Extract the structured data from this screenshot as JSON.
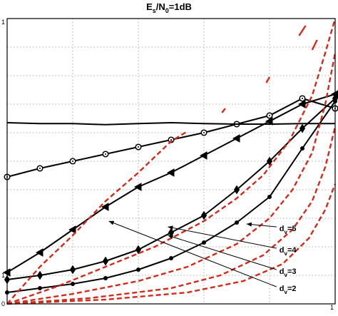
{
  "chart_data": {
    "type": "line",
    "title": "Es/N0=1dB",
    "title_parts": {
      "base": "E",
      "sub1": "s",
      "slash": "/N",
      "sub2": "0",
      "tail": "=1dB"
    },
    "xlim": [
      0,
      1
    ],
    "ylim": [
      0,
      1
    ],
    "x_tick_labels": [
      "1"
    ],
    "y_tick_labels": [
      "0",
      "1",
      "1"
    ],
    "grid": true,
    "series": [
      {
        "kind": "decoder",
        "color": "#000000",
        "marker": "circle-open",
        "x": [
          0.0,
          0.1,
          0.2,
          0.3,
          0.4,
          0.5,
          0.6,
          0.7,
          0.8,
          0.9,
          1.0
        ],
        "y": [
          0.445,
          0.475,
          0.5,
          0.525,
          0.55,
          0.575,
          0.6,
          0.63,
          0.66,
          0.72,
          0.685
        ]
      },
      {
        "kind": "decoder",
        "color": "#000000",
        "marker": "triangle-left",
        "x": [
          0.0,
          0.1,
          0.2,
          0.3,
          0.4,
          0.5,
          0.6,
          0.7,
          0.8,
          0.9,
          1.0
        ],
        "y": [
          0.11,
          0.18,
          0.26,
          0.34,
          0.41,
          0.46,
          0.52,
          0.58,
          0.64,
          0.7,
          0.735
        ]
      },
      {
        "kind": "decoder",
        "color": "#000000",
        "marker": "diamond",
        "x": [
          0.0,
          0.1,
          0.2,
          0.3,
          0.4,
          0.5,
          0.6,
          0.7,
          0.8,
          0.9,
          1.0
        ],
        "y": [
          0.085,
          0.1,
          0.12,
          0.15,
          0.19,
          0.25,
          0.31,
          0.4,
          0.5,
          0.615,
          0.72
        ]
      },
      {
        "kind": "decoder",
        "color": "#000000",
        "marker": "dot",
        "x": [
          0.0,
          0.1,
          0.2,
          0.3,
          0.4,
          0.5,
          0.6,
          0.7,
          0.8,
          0.9,
          1.0
        ],
        "y": [
          0.04,
          0.055,
          0.07,
          0.09,
          0.12,
          0.16,
          0.215,
          0.285,
          0.375,
          0.545,
          0.71
        ]
      },
      {
        "kind": "flat",
        "color": "#000000",
        "marker": "none",
        "x": [
          0.0,
          0.1,
          0.2,
          0.3,
          0.4,
          0.5,
          0.6,
          0.7,
          0.8,
          0.9,
          1.0
        ],
        "y": [
          0.635,
          0.632,
          0.632,
          0.628,
          0.632,
          0.635,
          0.632,
          0.63,
          0.63,
          0.632,
          0.632
        ]
      },
      {
        "kind": "check",
        "color": "#d42a1a",
        "marker": "none",
        "x": [
          0.0,
          0.1,
          0.2,
          0.3,
          0.4,
          0.5,
          0.55
        ],
        "y": [
          0.0,
          0.13,
          0.24,
          0.36,
          0.46,
          0.57,
          0.605
        ]
      },
      {
        "kind": "check",
        "color": "#d42a1a",
        "marker": "none",
        "x": [
          0.0,
          0.15,
          0.3,
          0.45,
          0.6,
          0.7,
          0.78,
          0.86,
          0.93,
          0.97,
          1.0
        ],
        "y": [
          0.0,
          0.06,
          0.13,
          0.2,
          0.29,
          0.37,
          0.45,
          0.57,
          0.73,
          0.88,
          1.0
        ]
      },
      {
        "kind": "check",
        "color": "#d42a1a",
        "marker": "none",
        "x": [
          0.0,
          0.2,
          0.4,
          0.55,
          0.7,
          0.8,
          0.87,
          0.93,
          0.97,
          1.0
        ],
        "y": [
          0.0,
          0.035,
          0.08,
          0.13,
          0.21,
          0.3,
          0.4,
          0.53,
          0.7,
          0.88
        ]
      },
      {
        "kind": "check",
        "color": "#d42a1a",
        "marker": "none",
        "x": [
          0.0,
          0.25,
          0.5,
          0.65,
          0.78,
          0.87,
          0.93,
          0.97,
          1.0
        ],
        "y": [
          0.0,
          0.02,
          0.055,
          0.1,
          0.17,
          0.26,
          0.36,
          0.48,
          0.62
        ]
      },
      {
        "kind": "check",
        "color": "#d42a1a",
        "marker": "none",
        "x": [
          0.0,
          0.3,
          0.55,
          0.72,
          0.84,
          0.92,
          0.97,
          1.0
        ],
        "y": [
          0.0,
          0.015,
          0.04,
          0.08,
          0.14,
          0.23,
          0.33,
          0.42
        ]
      }
    ],
    "red_fragments": [
      {
        "x": [
          0.89,
          0.91
        ],
        "y": [
          0.94,
          0.975
        ]
      },
      {
        "x": [
          0.93,
          0.945
        ],
        "y": [
          0.89,
          0.925
        ]
      },
      {
        "x": [
          0.79,
          0.8
        ],
        "y": [
          0.775,
          0.795
        ]
      },
      {
        "x": [
          0.655,
          0.665
        ],
        "y": [
          0.67,
          0.685
        ]
      }
    ],
    "annotations": [
      {
        "label": "d",
        "sub": "v",
        "tail": "=5",
        "label_xy": [
          0.83,
          0.255
        ],
        "arrow_to": [
          0.73,
          0.28
        ]
      },
      {
        "label": "d",
        "sub": "v",
        "tail": "=4",
        "label_xy": [
          0.83,
          0.18
        ],
        "arrow_to": [
          0.49,
          0.27
        ]
      },
      {
        "label": "d",
        "sub": "v",
        "tail": "=3",
        "label_xy": [
          0.83,
          0.105
        ],
        "arrow_to": [
          0.49,
          0.24
        ]
      },
      {
        "label": "d",
        "sub": "v",
        "tail": "=2",
        "label_xy": [
          0.83,
          0.045
        ],
        "arrow_to": [
          0.31,
          0.29
        ]
      }
    ]
  }
}
